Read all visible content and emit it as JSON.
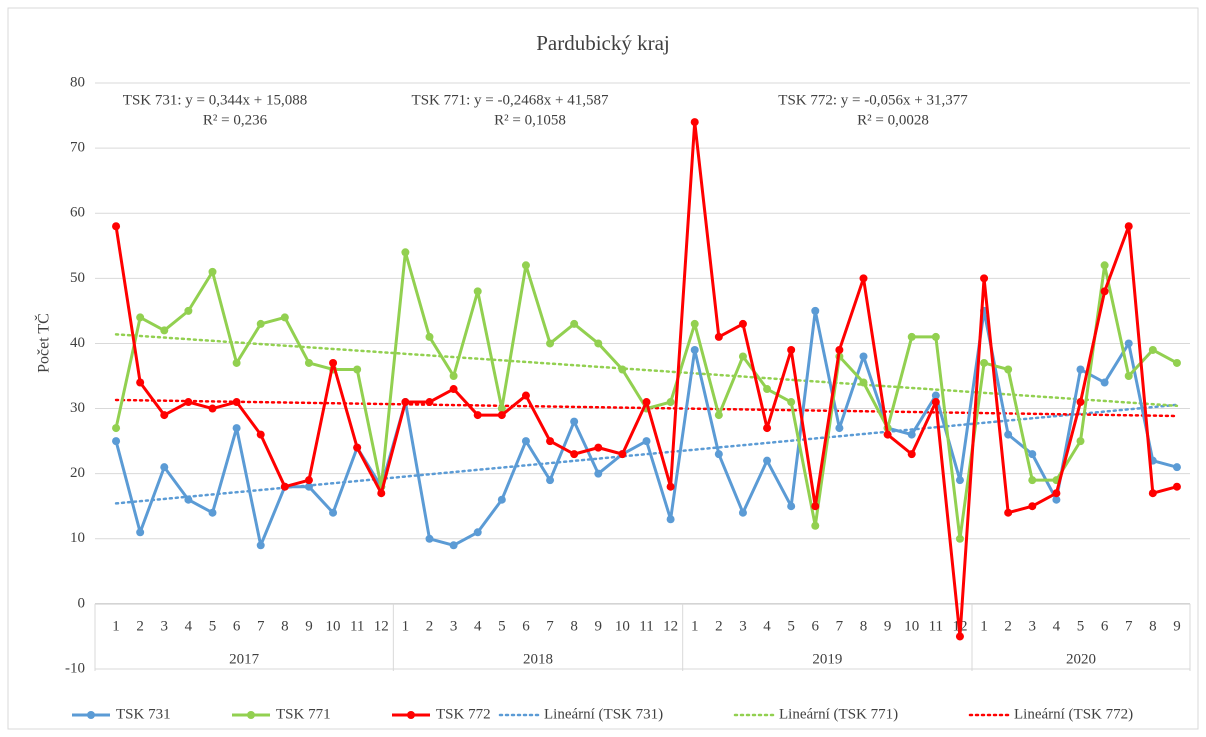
{
  "chart_data": {
    "type": "line",
    "title": "Pardubický  kraj",
    "y_label": "Počet TČ",
    "categories": [
      "1",
      "2",
      "3",
      "4",
      "5",
      "6",
      "7",
      "8",
      "9",
      "10",
      "11",
      "12",
      "1",
      "2",
      "3",
      "4",
      "5",
      "6",
      "7",
      "8",
      "9",
      "10",
      "11",
      "12",
      "1",
      "2",
      "3",
      "4",
      "5",
      "6",
      "7",
      "8",
      "9",
      "10",
      "11",
      "12",
      "1",
      "2",
      "3",
      "4",
      "5",
      "6",
      "7",
      "8",
      "9"
    ],
    "category_groups": [
      {
        "label": "2017",
        "span": 12
      },
      {
        "label": "2018",
        "span": 12
      },
      {
        "label": "2019",
        "span": 12
      },
      {
        "label": "2020",
        "span": 9
      }
    ],
    "ylim": [
      -10,
      80
    ],
    "yticks": [
      -10,
      0,
      10,
      20,
      30,
      40,
      50,
      60,
      70,
      80
    ],
    "grid": true,
    "legend": "bottom",
    "series": [
      {
        "name": "TSK 731",
        "trend_name": "Lineární (TSK 731)",
        "color": "#5b9bd5",
        "values": [
          25,
          11,
          21,
          16,
          14,
          27,
          9,
          18,
          18,
          14,
          24,
          18,
          31,
          10,
          9,
          11,
          16,
          25,
          19,
          28,
          20,
          23,
          25,
          13,
          39,
          23,
          14,
          22,
          15,
          45,
          27,
          38,
          27,
          26,
          32,
          19,
          45,
          26,
          23,
          16,
          36,
          34,
          40,
          22,
          21
        ]
      },
      {
        "name": "TSK 771",
        "trend_name": "Lineární (TSK 771)",
        "color": "#92d050",
        "values": [
          27,
          44,
          42,
          45,
          51,
          37,
          43,
          44,
          37,
          36,
          36,
          18,
          54,
          41,
          35,
          48,
          30,
          52,
          40,
          43,
          40,
          36,
          30,
          31,
          43,
          29,
          38,
          33,
          31,
          12,
          38,
          34,
          27,
          41,
          41,
          10,
          37,
          36,
          19,
          19,
          25,
          52,
          35,
          39,
          37
        ]
      },
      {
        "name": "TSK 772",
        "trend_name": "Lineární (TSK 772)",
        "color": "#ff0000",
        "values": [
          58,
          34,
          29,
          31,
          30,
          31,
          26,
          18,
          19,
          37,
          24,
          17,
          31,
          31,
          33,
          29,
          29,
          32,
          25,
          23,
          24,
          23,
          31,
          18,
          74,
          41,
          43,
          27,
          39,
          15,
          39,
          50,
          26,
          23,
          31,
          -5,
          50,
          14,
          15,
          17,
          31,
          48,
          58,
          17,
          18
        ]
      }
    ],
    "annotations": [
      {
        "lines": [
          "TSK 731: y = 0,344x + 15,088",
          "R² = 0,236"
        ]
      },
      {
        "lines": [
          "TSK 771: y = -0,2468x + 41,587",
          "R² = 0,1058"
        ]
      },
      {
        "lines": [
          "TSK 772: y = -0,056x + 31,377",
          "R² = 0,0028"
        ]
      }
    ]
  }
}
